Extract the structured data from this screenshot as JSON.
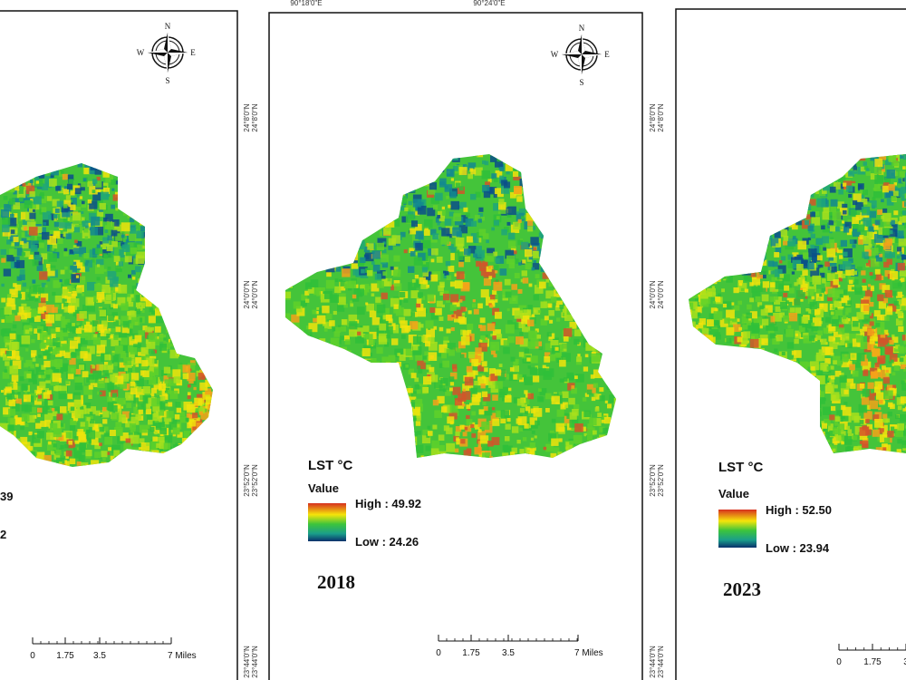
{
  "panels": [
    {
      "legend": {
        "high": "39",
        "low": "2"
      },
      "compass": {
        "n": "N",
        "s": "S",
        "w": "W",
        "e": "E"
      },
      "scale": [
        "0",
        "1.75",
        "3.5",
        "7 Miles"
      ]
    },
    {
      "top_labels": [
        "90°18'0\"E",
        "90°24'0\"E"
      ],
      "lat_labels": [
        "24°8'0\"N",
        "24°0'0\"N",
        "23°52'0\"N",
        "23°44'0\"N"
      ],
      "compass": {
        "n": "N",
        "s": "S",
        "w": "W",
        "e": "E"
      },
      "legend": {
        "title": "LST °C",
        "subtitle": "Value",
        "high": "High : 49.92",
        "low": "Low : 24.26"
      },
      "year": "2018",
      "scale": [
        "0",
        "1.75",
        "3.5",
        "7 Miles"
      ]
    },
    {
      "lat_labels": [
        "24°8'0\"N",
        "24°0'0\"N",
        "23°52'0\"N",
        "23°44'0\"N"
      ],
      "legend": {
        "title": "LST °C",
        "subtitle": "Value",
        "high": "High : 52.50",
        "low": "Low : 23.94"
      },
      "year": "2023",
      "scale": [
        "0",
        "1.75",
        "3"
      ]
    }
  ]
}
